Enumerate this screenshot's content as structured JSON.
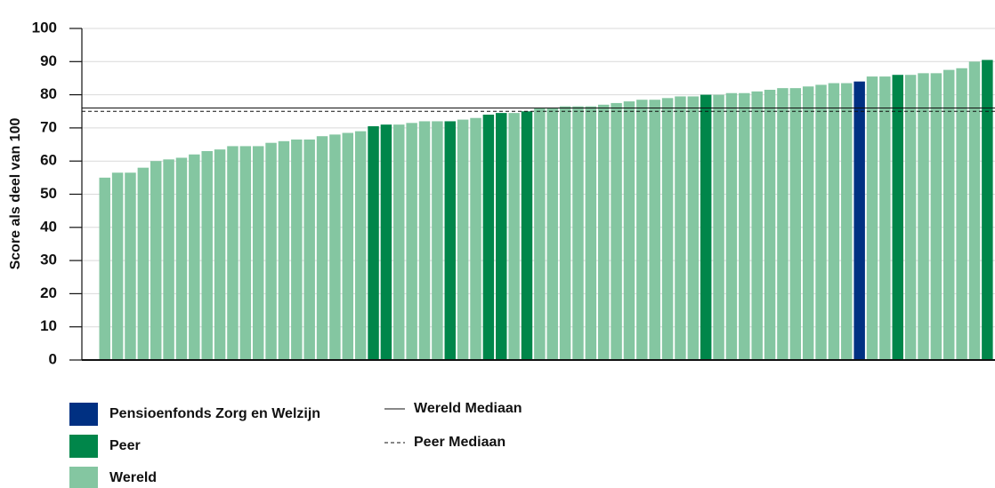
{
  "chart_data": {
    "type": "bar",
    "y_label": "Score als deel van 100",
    "ylim": [
      0,
      100
    ],
    "yticks": [
      0,
      10,
      20,
      30,
      40,
      50,
      60,
      70,
      80,
      90,
      100
    ],
    "grid": true,
    "stacked": false,
    "series": [
      {
        "name": "Pensioenfonds Zorg en Welzijn",
        "color": "#003082",
        "values": [
          null,
          null,
          null,
          null,
          null,
          null,
          null,
          null,
          null,
          null,
          null,
          null,
          null,
          null,
          null,
          null,
          null,
          null,
          null,
          null,
          null,
          null,
          null,
          null,
          null,
          null,
          null,
          null,
          null,
          null,
          null,
          null,
          null,
          null,
          null,
          null,
          null,
          null,
          null,
          null,
          null,
          null,
          null,
          null,
          null,
          null,
          null,
          null,
          null,
          null,
          null,
          null,
          null,
          null,
          null,
          null,
          null,
          null,
          null,
          84,
          null,
          null,
          null,
          null,
          null,
          null,
          null,
          null,
          null,
          null
        ]
      },
      {
        "name": "Peer",
        "color": "#00864a",
        "values": [
          null,
          null,
          null,
          null,
          null,
          null,
          null,
          null,
          null,
          null,
          null,
          null,
          null,
          null,
          null,
          null,
          null,
          null,
          null,
          null,
          null,
          70.5,
          71,
          null,
          null,
          null,
          null,
          72,
          null,
          null,
          74,
          74.5,
          null,
          75,
          null,
          null,
          null,
          null,
          null,
          null,
          null,
          null,
          null,
          null,
          null,
          null,
          null,
          80,
          null,
          null,
          null,
          null,
          null,
          null,
          null,
          null,
          null,
          null,
          null,
          null,
          null,
          null,
          86,
          null,
          null,
          null,
          null,
          null,
          null,
          90.5
        ]
      },
      {
        "name": "Wereld",
        "color": "#84c6a1",
        "values": [
          55,
          56.5,
          56.5,
          58,
          60,
          60.5,
          61,
          62,
          63,
          63.5,
          64.5,
          64.5,
          64.5,
          65.5,
          66,
          66.5,
          66.5,
          67.5,
          68,
          68.5,
          69,
          null,
          null,
          71,
          71.5,
          72,
          72,
          null,
          72.5,
          73,
          null,
          null,
          74.5,
          null,
          76,
          76,
          76.5,
          76.5,
          76.5,
          77,
          77.5,
          78,
          78.5,
          78.5,
          79,
          79.5,
          79.5,
          null,
          80,
          80.5,
          80.5,
          81,
          81.5,
          82,
          82,
          82.5,
          83,
          83.5,
          83.5,
          null,
          85.5,
          85.5,
          null,
          86,
          86.5,
          86.5,
          87.5,
          88,
          90,
          null
        ]
      }
    ],
    "reference_lines": [
      {
        "name": "Wereld Mediaan",
        "value": 76,
        "style": "solid"
      },
      {
        "name": "Peer Mediaan",
        "value": 75,
        "style": "dashed"
      }
    ]
  }
}
